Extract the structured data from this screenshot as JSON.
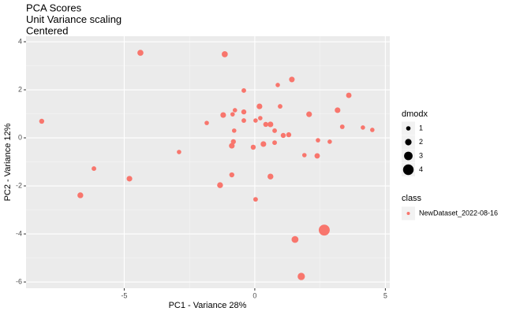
{
  "chart_data": {
    "type": "scatter",
    "title": [
      "PCA Scores",
      "Unit Variance scaling",
      "Centered"
    ],
    "xlabel": "PC1 - Variance 28%",
    "ylabel": "PC2 - Variance 12%",
    "xlim": [
      -8.76,
      5.17
    ],
    "ylim": [
      -6.26,
      4.23
    ],
    "xticks": [
      -5,
      0,
      5
    ],
    "yticks": [
      -6,
      -4,
      -2,
      0,
      2,
      4
    ],
    "grid": true,
    "size_legend": {
      "title": "dmodx",
      "values": [
        1,
        2,
        3,
        4
      ]
    },
    "color_legend_title": "class",
    "series": [
      {
        "name": "NewDataset_2022-08-16",
        "color": "#F8766D",
        "x": [
          -8.16,
          -4.38,
          -1.15,
          -0.42,
          0.88,
          1.42,
          3.6,
          3.17,
          2.08,
          0.18,
          0.97,
          -0.76,
          -1.21,
          -0.85,
          -0.42,
          -0.42,
          -1.84,
          0.03,
          0.21,
          0.42,
          0.6,
          0.76,
          1.09,
          1.3,
          -0.79,
          -0.82,
          -0.88,
          0.33,
          -0.06,
          0.76,
          2.42,
          2.87,
          3.35,
          4.14,
          4.5,
          1.9,
          2.39,
          -2.9,
          -6.16,
          -4.8,
          -0.88,
          0.6,
          -1.33,
          -6.68,
          0.03,
          1.54,
          2.66,
          1.78
        ],
        "y": [
          0.69,
          3.54,
          3.48,
          1.97,
          2.2,
          2.43,
          1.77,
          1.15,
          0.98,
          1.31,
          1.31,
          1.15,
          0.95,
          0.98,
          1.08,
          0.72,
          0.62,
          0.72,
          0.82,
          0.56,
          0.56,
          0.3,
          0.1,
          0.13,
          0.3,
          -0.16,
          -0.33,
          -0.26,
          -0.39,
          -0.2,
          -0.1,
          -0.16,
          0.46,
          0.43,
          0.33,
          -0.72,
          -0.75,
          -0.59,
          -1.28,
          -1.7,
          -1.54,
          -1.61,
          -1.97,
          -2.39,
          -2.56,
          -4.23,
          -3.84,
          -5.77
        ],
        "size": [
          1.3,
          1.8,
          1.8,
          1.1,
          1.0,
          1.6,
          1.5,
          1.6,
          1.6,
          1.6,
          1.1,
          1.0,
          1.6,
          1.0,
          1.3,
          1.1,
          1.0,
          1.0,
          1.0,
          1.3,
          1.6,
          1.1,
          1.3,
          1.3,
          1.0,
          1.3,
          1.6,
          1.6,
          1.3,
          1.1,
          1.0,
          1.0,
          1.1,
          1.0,
          1.0,
          1.0,
          1.5,
          1.0,
          1.1,
          1.6,
          1.3,
          1.7,
          1.7,
          1.7,
          1.1,
          2.2,
          4.2,
          2.4
        ]
      }
    ]
  }
}
